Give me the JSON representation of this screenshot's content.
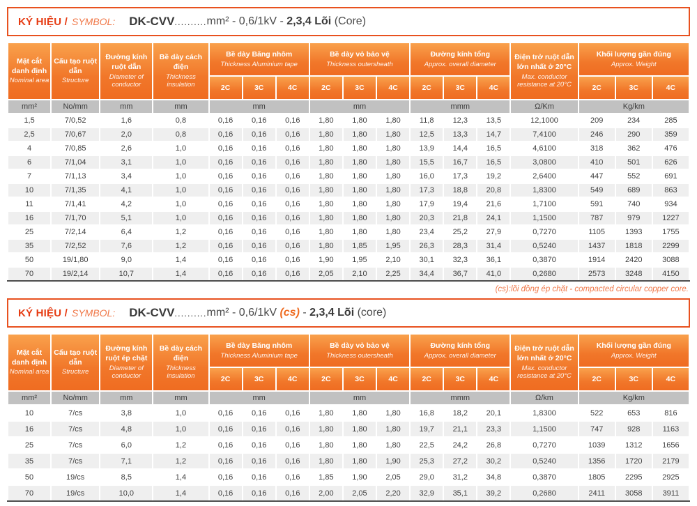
{
  "colors": {
    "accent_orange": "#EF6C21",
    "accent_orange_light": "#F9A14C",
    "banner_border": "#E8511F",
    "banner_red": "#E63B12",
    "unit_row_bg": "#C1C1C1",
    "alt_row_bg": "#EFEFEF"
  },
  "note": "(cs):lõi đồng ép chặt - compacted circular copper core.",
  "t1": {
    "title": {
      "ky_hieu": "KÝ HIỆU /",
      "symbol": "SYMBOL:",
      "code": "DK-CVV",
      "dots": "..........",
      "spec": "mm² - 0,6/1kV - ",
      "cores": "2,3,4 Lõi",
      "suffix": " (Core)"
    },
    "groups": [
      {
        "vi": "Mặt cắt danh định",
        "en": "Nominal area"
      },
      {
        "vi": "Cấu tạo ruột dẫn",
        "en": "Structure"
      },
      {
        "vi": "Đường kính ruột dẫn",
        "en": "Diameter of conductor"
      },
      {
        "vi": "Bề dày cách điện",
        "en": "Thickness insulation"
      },
      {
        "vi": "Bề dày Băng nhôm",
        "en": "Thickness Aluminium tape"
      },
      {
        "vi": "Bề dày vỏ bảo vệ",
        "en": "Thickness outersheath"
      },
      {
        "vi": "Đường kính tổng",
        "en": "Approx. overall diameter"
      },
      {
        "vi": "Điện trở ruột dẫn lớn nhất ở 20°C",
        "en": "Max. conductor resistance at 20°C"
      },
      {
        "vi": "Khối lượng gần đúng",
        "en": "Approx. Weight"
      }
    ],
    "subs": [
      "2C",
      "3C",
      "4C"
    ],
    "units": [
      "mm²",
      "No/mm",
      "mm",
      "mm",
      "mm",
      "mm",
      "mmm",
      "Ω/Km",
      "Kg/km"
    ],
    "rows": [
      [
        "1,5",
        "7/0,52",
        "1,6",
        "0,8",
        "0,16",
        "0,16",
        "0,16",
        "1,80",
        "1,80",
        "1,80",
        "11,8",
        "12,3",
        "13,5",
        "12,1000",
        "209",
        "234",
        "285"
      ],
      [
        "2,5",
        "7/0,67",
        "2,0",
        "0,8",
        "0,16",
        "0,16",
        "0,16",
        "1,80",
        "1,80",
        "1,80",
        "12,5",
        "13,3",
        "14,7",
        "7,4100",
        "246",
        "290",
        "359"
      ],
      [
        "4",
        "7/0,85",
        "2,6",
        "1,0",
        "0,16",
        "0,16",
        "0,16",
        "1,80",
        "1,80",
        "1,80",
        "13,9",
        "14,4",
        "16,5",
        "4,6100",
        "318",
        "362",
        "476"
      ],
      [
        "6",
        "7/1,04",
        "3,1",
        "1,0",
        "0,16",
        "0,16",
        "0,16",
        "1,80",
        "1,80",
        "1,80",
        "15,5",
        "16,7",
        "16,5",
        "3,0800",
        "410",
        "501",
        "626"
      ],
      [
        "7",
        "7/1,13",
        "3,4",
        "1,0",
        "0,16",
        "0,16",
        "0,16",
        "1,80",
        "1,80",
        "1,80",
        "16,0",
        "17,3",
        "19,2",
        "2,6400",
        "447",
        "552",
        "691"
      ],
      [
        "10",
        "7/1,35",
        "4,1",
        "1,0",
        "0,16",
        "0,16",
        "0,16",
        "1,80",
        "1,80",
        "1,80",
        "17,3",
        "18,8",
        "20,8",
        "1,8300",
        "549",
        "689",
        "863"
      ],
      [
        "11",
        "7/1,41",
        "4,2",
        "1,0",
        "0,16",
        "0,16",
        "0,16",
        "1,80",
        "1,80",
        "1,80",
        "17,9",
        "19,4",
        "21,6",
        "1,7100",
        "591",
        "740",
        "934"
      ],
      [
        "16",
        "7/1,70",
        "5,1",
        "1,0",
        "0,16",
        "0,16",
        "0,16",
        "1,80",
        "1,80",
        "1,80",
        "20,3",
        "21,8",
        "24,1",
        "1,1500",
        "787",
        "979",
        "1227"
      ],
      [
        "25",
        "7/2,14",
        "6,4",
        "1,2",
        "0,16",
        "0,16",
        "0,16",
        "1,80",
        "1,80",
        "1,80",
        "23,4",
        "25,2",
        "27,9",
        "0,7270",
        "1105",
        "1393",
        "1755"
      ],
      [
        "35",
        "7/2,52",
        "7,6",
        "1,2",
        "0,16",
        "0,16",
        "0,16",
        "1,80",
        "1,85",
        "1,95",
        "26,3",
        "28,3",
        "31,4",
        "0,5240",
        "1437",
        "1818",
        "2299"
      ],
      [
        "50",
        "19/1,80",
        "9,0",
        "1,4",
        "0,16",
        "0,16",
        "0,16",
        "1,90",
        "1,95",
        "2,10",
        "30,1",
        "32,3",
        "36,1",
        "0,3870",
        "1914",
        "2420",
        "3088"
      ],
      [
        "70",
        "19/2,14",
        "10,7",
        "1,4",
        "0,16",
        "0,16",
        "0,16",
        "2,05",
        "2,10",
        "2,25",
        "34,4",
        "36,7",
        "41,0",
        "0,2680",
        "2573",
        "3248",
        "4150"
      ]
    ]
  },
  "t2": {
    "title": {
      "ky_hieu": "KÝ HIỆU /",
      "symbol": "SYMBOL:",
      "code": "DK-CVV",
      "dots": "..........",
      "spec": "mm² - 0,6/1kV ",
      "cs": "(cs)",
      "dash": " - ",
      "cores": "2,3,4 Lõi",
      "suffix": " (core)"
    },
    "groups": [
      {
        "vi": "Mặt cắt danh định",
        "en": "Nominal area"
      },
      {
        "vi": "Cấu tạo ruột dẫn",
        "en": "Structure"
      },
      {
        "vi": "Đường kính ruột ép chặt",
        "en": "Diameter of conductor"
      },
      {
        "vi": "Bề dày cách điện",
        "en": "Thickness insulation"
      },
      {
        "vi": "Bề dày Băng nhôm",
        "en": "Thickness Aluminium tape"
      },
      {
        "vi": "Bề dày vỏ bảo vệ",
        "en": "Thickness outersheath"
      },
      {
        "vi": "Đường kính tổng",
        "en": "Approx. overall diameter"
      },
      {
        "vi": "Điện trở ruột dẫn lớn nhất ở 20°C",
        "en": "Max. conductor resistance at 20°C"
      },
      {
        "vi": "Khối lượng gần đúng",
        "en": "Approx. Weight"
      }
    ],
    "subs": [
      "2C",
      "3C",
      "4C"
    ],
    "units": [
      "mm²",
      "No/mm",
      "mm",
      "mm",
      "mm",
      "mm",
      "mmm",
      "Ω/km",
      "Kg/km"
    ],
    "rows": [
      [
        "10",
        "7/cs",
        "3,8",
        "1,0",
        "0,16",
        "0,16",
        "0,16",
        "1,80",
        "1,80",
        "1,80",
        "16,8",
        "18,2",
        "20,1",
        "1,8300",
        "522",
        "653",
        "816"
      ],
      [
        "16",
        "7/cs",
        "4,8",
        "1,0",
        "0,16",
        "0,16",
        "0,16",
        "1,80",
        "1,80",
        "1,80",
        "19,7",
        "21,1",
        "23,3",
        "1,1500",
        "747",
        "928",
        "1163"
      ],
      [
        "25",
        "7/cs",
        "6,0",
        "1,2",
        "0,16",
        "0,16",
        "0,16",
        "1,80",
        "1,80",
        "1,80",
        "22,5",
        "24,2",
        "26,8",
        "0,7270",
        "1039",
        "1312",
        "1656"
      ],
      [
        "35",
        "7/cs",
        "7,1",
        "1,2",
        "0,16",
        "0,16",
        "0,16",
        "1,80",
        "1,80",
        "1,90",
        "25,3",
        "27,2",
        "30,2",
        "0,5240",
        "1356",
        "1720",
        "2179"
      ],
      [
        "50",
        "19/cs",
        "8,5",
        "1,4",
        "0,16",
        "0,16",
        "0,16",
        "1,85",
        "1,90",
        "2,05",
        "29,0",
        "31,2",
        "34,8",
        "0,3870",
        "1805",
        "2295",
        "2925"
      ],
      [
        "70",
        "19/cs",
        "10,0",
        "1,4",
        "0,16",
        "0,16",
        "0,16",
        "2,00",
        "2,05",
        "2,20",
        "32,9",
        "35,1",
        "39,2",
        "0,2680",
        "2411",
        "3058",
        "3911"
      ]
    ]
  }
}
